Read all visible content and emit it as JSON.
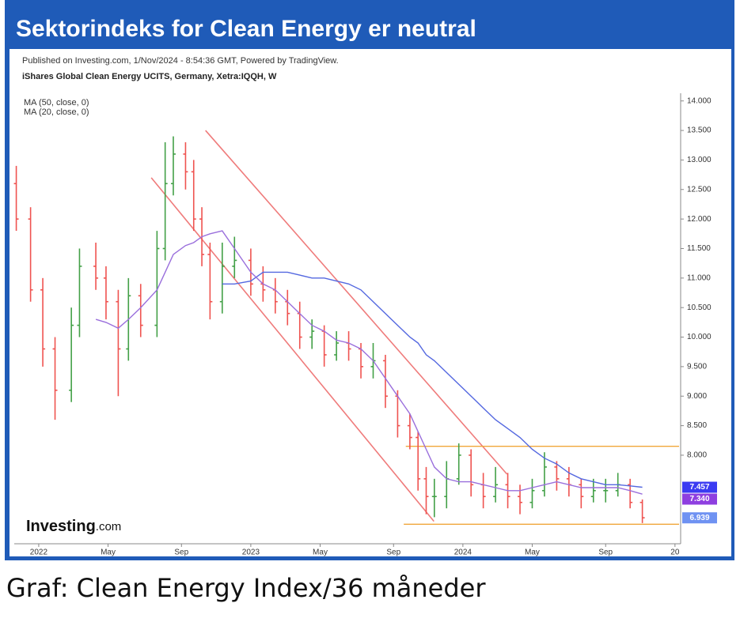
{
  "chart_data": {
    "type": "ohlc",
    "title": "Sektorindeks for Clean Energy er neutral",
    "caption": "Graf: Clean Energy Index/36 måneder",
    "published": "Published on Investing.com, 1/Nov/2024 - 8:54:36 GMT, Powered by TradingView.",
    "subtitle": "iShares Global Clean Energy UCITS, Germany, Xetra:IQQH, W",
    "logo_text": "Investing",
    "logo_suffix": ".com",
    "up_color": "#43a047",
    "down_color": "#ef5350",
    "xlim": [
      -6,
      157
    ],
    "ylim": [
      6.5,
      14.13
    ],
    "xticks": [
      {
        "value": 0,
        "label": "2022"
      },
      {
        "value": 17,
        "label": "May"
      },
      {
        "value": 35,
        "label": "Sep"
      },
      {
        "value": 52,
        "label": "2023"
      },
      {
        "value": 69,
        "label": "May"
      },
      {
        "value": 87,
        "label": "Sep"
      },
      {
        "value": 104,
        "label": "2024"
      },
      {
        "value": 121,
        "label": "May"
      },
      {
        "value": 139,
        "label": "Sep"
      },
      {
        "value": 156,
        "label": "20"
      }
    ],
    "yticks": [
      {
        "value": 8,
        "label": "8.000"
      },
      {
        "value": 8.5,
        "label": "8.500"
      },
      {
        "value": 9,
        "label": "9.000"
      },
      {
        "value": 9.5,
        "label": "9.500"
      },
      {
        "value": 10,
        "label": "10.000"
      },
      {
        "value": 10.5,
        "label": "10.500"
      },
      {
        "value": 11,
        "label": "11.000"
      },
      {
        "value": 11.5,
        "label": "11.500"
      },
      {
        "value": 12,
        "label": "12.000"
      },
      {
        "value": 12.5,
        "label": "12.500"
      },
      {
        "value": 13,
        "label": "13.000"
      },
      {
        "value": 13.5,
        "label": "13.500"
      },
      {
        "value": 14,
        "label": "14.000"
      }
    ],
    "x": [
      -5.5,
      -2,
      1,
      4,
      8,
      10,
      14,
      16.5,
      19.5,
      22,
      25,
      29,
      31,
      33,
      36,
      38,
      40,
      42,
      45,
      48,
      52,
      55,
      58,
      61,
      64,
      67,
      70,
      73,
      76,
      79,
      82,
      85,
      88,
      91,
      93,
      95,
      97,
      100,
      103,
      106,
      109,
      112,
      115,
      118,
      121,
      124,
      127,
      130,
      133,
      136,
      139,
      142,
      145,
      148
    ],
    "open": [
      12.6,
      12.0,
      10.8,
      9.8,
      9.1,
      10.2,
      11.2,
      11.0,
      10.6,
      9.8,
      10.7,
      10.2,
      11.5,
      12.6,
      13.1,
      12.8,
      12.0,
      11.4,
      10.6,
      11.2,
      11.3,
      10.9,
      10.8,
      10.6,
      10.4,
      10.0,
      10.1,
      9.7,
      9.9,
      9.8,
      9.5,
      9.6,
      9.0,
      8.5,
      8.3,
      7.6,
      7.3,
      7.3,
      7.6,
      8.0,
      7.5,
      7.3,
      7.5,
      7.3,
      7.2,
      7.4,
      7.8,
      7.6,
      7.5,
      7.3,
      7.4,
      7.4,
      7.5,
      7.2
    ],
    "high": [
      12.9,
      12.2,
      11.0,
      10.0,
      10.5,
      11.5,
      11.6,
      11.2,
      10.8,
      11.0,
      10.9,
      11.8,
      13.3,
      13.4,
      13.3,
      13.0,
      12.2,
      11.6,
      11.6,
      11.7,
      11.5,
      11.2,
      11.0,
      10.8,
      10.6,
      10.3,
      10.2,
      10.1,
      10.1,
      9.9,
      9.9,
      9.7,
      9.1,
      8.7,
      8.4,
      7.8,
      7.6,
      7.9,
      8.2,
      8.1,
      7.7,
      7.8,
      7.7,
      7.5,
      7.6,
      8.05,
      7.9,
      7.8,
      7.6,
      7.6,
      7.6,
      7.7,
      7.6,
      7.25
    ],
    "low": [
      11.8,
      10.6,
      9.5,
      8.6,
      8.9,
      10.0,
      10.8,
      10.3,
      9.0,
      9.6,
      10.0,
      10.0,
      11.3,
      12.4,
      12.5,
      11.8,
      11.2,
      10.3,
      10.4,
      11.0,
      10.7,
      10.6,
      10.4,
      10.2,
      9.8,
      9.8,
      9.5,
      9.6,
      9.6,
      9.3,
      9.3,
      8.8,
      8.3,
      8.1,
      7.4,
      7.0,
      6.95,
      7.1,
      7.5,
      7.3,
      7.1,
      7.2,
      7.1,
      7.0,
      7.1,
      7.3,
      7.4,
      7.3,
      7.1,
      7.2,
      7.2,
      7.3,
      7.1,
      6.85
    ],
    "close": [
      12.0,
      10.8,
      9.8,
      9.1,
      10.2,
      11.2,
      11.0,
      10.6,
      9.8,
      10.7,
      10.2,
      11.5,
      12.6,
      13.1,
      12.8,
      12.0,
      11.4,
      10.6,
      11.2,
      11.3,
      10.9,
      10.8,
      10.6,
      10.4,
      10.0,
      10.1,
      9.7,
      9.9,
      9.8,
      9.5,
      9.6,
      9.0,
      8.5,
      8.3,
      7.6,
      7.3,
      7.3,
      7.6,
      8.0,
      7.5,
      7.3,
      7.5,
      7.3,
      7.2,
      7.4,
      7.8,
      7.6,
      7.5,
      7.3,
      7.4,
      7.4,
      7.5,
      7.2,
      6.94
    ],
    "series": [
      {
        "name": "MA (50, close, 0)",
        "color": "#5468e0",
        "values": [
          null,
          null,
          null,
          null,
          null,
          null,
          null,
          null,
          null,
          null,
          null,
          null,
          null,
          null,
          null,
          null,
          null,
          null,
          10.9,
          10.9,
          10.95,
          11.1,
          11.1,
          11.1,
          11.05,
          11.0,
          11.0,
          10.95,
          10.9,
          10.8,
          10.6,
          10.4,
          10.2,
          10.0,
          9.9,
          9.7,
          9.6,
          9.4,
          9.2,
          9.0,
          8.8,
          8.6,
          8.45,
          8.3,
          8.1,
          7.95,
          7.85,
          7.7,
          7.6,
          7.55,
          7.5,
          7.5,
          7.48,
          7.457
        ]
      },
      {
        "name": "MA (20, close, 0)",
        "color": "#9a6fdc",
        "values": [
          null,
          null,
          null,
          null,
          null,
          null,
          10.3,
          10.25,
          10.15,
          10.3,
          10.5,
          10.8,
          11.1,
          11.4,
          11.55,
          11.6,
          11.7,
          11.75,
          11.8,
          11.5,
          11.1,
          10.9,
          10.8,
          10.6,
          10.4,
          10.2,
          10.1,
          9.95,
          9.9,
          9.8,
          9.6,
          9.3,
          9.0,
          8.7,
          8.4,
          8.1,
          7.8,
          7.6,
          7.55,
          7.55,
          7.5,
          7.45,
          7.4,
          7.4,
          7.45,
          7.5,
          7.55,
          7.5,
          7.45,
          7.45,
          7.45,
          7.45,
          7.4,
          7.34
        ]
      }
    ],
    "channel_color": "#ef7b7b",
    "channel_lines": [
      {
        "x": [
          40.9,
          114.8
        ],
        "y": [
          13.5,
          7.68
        ]
      },
      {
        "x": [
          27.6,
          96.9
        ],
        "y": [
          12.7,
          6.88
        ]
      }
    ],
    "support_color": "#f0a63a",
    "support_levels": [
      {
        "value": 8.15,
        "x": [
          90,
          157
        ]
      },
      {
        "value": 6.83,
        "x": [
          89.5,
          157
        ]
      }
    ],
    "price_labels": [
      {
        "value": 7.457,
        "label": "7.457",
        "color": "#3b3bf2"
      },
      {
        "value": 7.34,
        "label": "7.340",
        "color": "#8e3fe0"
      },
      {
        "value": 6.939,
        "label": "6.939",
        "color": "#6f92f2"
      }
    ]
  }
}
